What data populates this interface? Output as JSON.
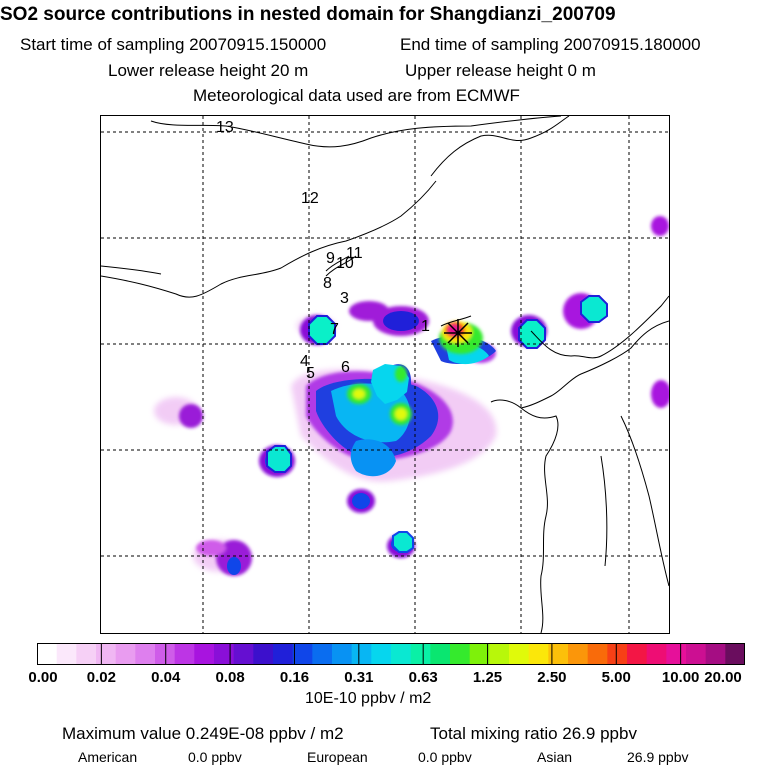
{
  "header": {
    "title": "SO2 source contributions in nested domain for Shangdianzi_200709",
    "start_label": "Start time of sampling 20070915.150000",
    "end_label": "End time of sampling 20070915.180000",
    "lower_label": "Lower release height   20 m",
    "upper_label": "Upper release height    0 m",
    "met_label": "Meteorological data used are from ECMWF"
  },
  "map": {
    "trajectory_labels": [
      "1",
      "3",
      "4",
      "5",
      "6",
      "7",
      "8",
      "9",
      "10",
      "11",
      "12",
      "13"
    ],
    "receptor_marker": "star-cross"
  },
  "colorbar": {
    "tick_labels": [
      "0.00",
      "0.02",
      "0.04",
      "0.08",
      "0.16",
      "0.31",
      "0.63",
      "1.25",
      "2.50",
      "5.00",
      "10.00",
      "20.00"
    ],
    "colors": [
      "#ffffff",
      "#fbe8fb",
      "#f6d0f6",
      "#f0b7f3",
      "#e99cf0",
      "#de7fee",
      "#cf5ce9",
      "#bd35e5",
      "#a814df",
      "#8a0fd8",
      "#650fd1",
      "#3c10cc",
      "#2020d9",
      "#1046e9",
      "#0a6df0",
      "#0892f3",
      "#08b6f3",
      "#06d6ee",
      "#0ae8d2",
      "#0af0a6",
      "#0ae670",
      "#35ea2d",
      "#7ef10a",
      "#b8f70a",
      "#e0fa0a",
      "#fbe70a",
      "#fcc00a",
      "#fb960a",
      "#f96b0a",
      "#f74016",
      "#f31645",
      "#ee0d74",
      "#e6109a",
      "#cc0f92",
      "#a50d83",
      "#6a0d5e"
    ],
    "units": "10E-10 ppbv / m2"
  },
  "summary": {
    "max_label": "Maximum value  0.249E-08 ppbv / m2",
    "total_label": "Total mixing ratio     26.9 ppbv",
    "american_label": "American",
    "american_value": "0.0 ppbv",
    "european_label": "European",
    "european_value": "0.0 ppbv",
    "asian_label": "Asian",
    "asian_value": "26.9 ppbv"
  }
}
